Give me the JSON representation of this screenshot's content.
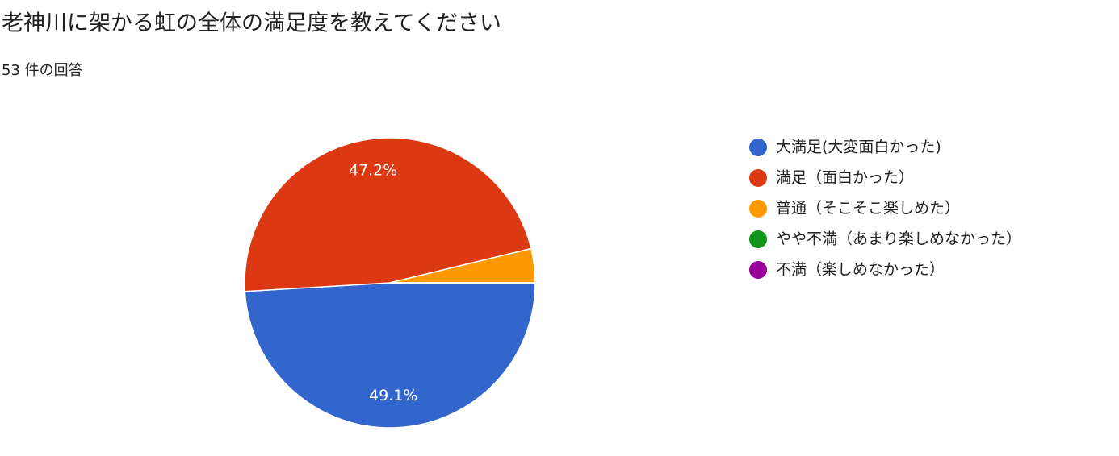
{
  "chart_data": {
    "type": "pie",
    "title": "老神川に架かる虹の全体の満足度を教えてください",
    "subtitle": "53 件の回答",
    "categories": [
      "大満足(大変面白かった)",
      "満足（面白かった）",
      "普通（そこそこ楽しめた）",
      "やや不満（あまり楽しめなかった）",
      "不満（楽しめなかった）"
    ],
    "values": [
      49.1,
      47.2,
      3.8,
      0,
      0
    ],
    "value_labels": [
      "49.1%",
      "47.2%",
      null,
      null,
      null
    ],
    "colors": [
      "#3366cc",
      "#dc3912",
      "#ff9900",
      "#109618",
      "#990099"
    ],
    "legend": "right"
  }
}
